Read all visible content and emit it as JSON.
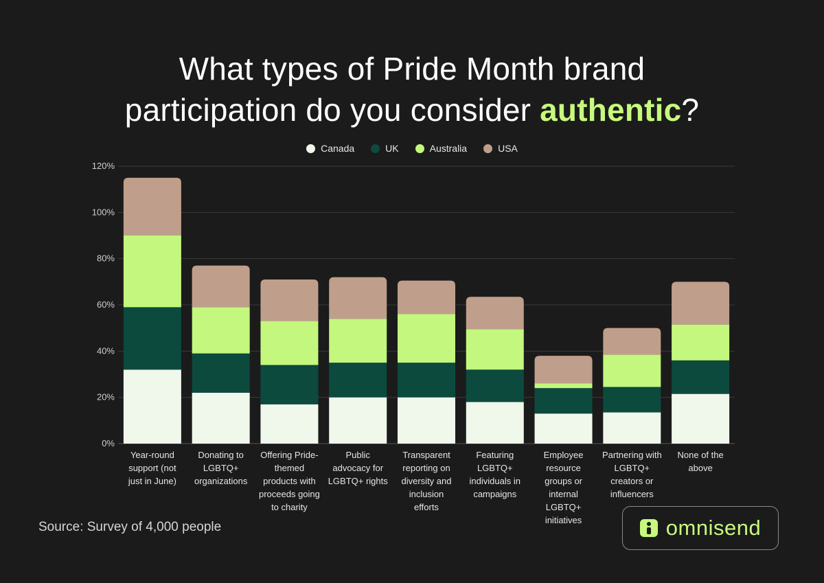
{
  "title": {
    "part1": "What types of Pride Month brand",
    "part2": "participation do you consider ",
    "highlight": "authentic",
    "part3": "?"
  },
  "legend": [
    {
      "label": "Canada",
      "color": "#f0f8ec"
    },
    {
      "label": "UK",
      "color": "#0c4a3e"
    },
    {
      "label": "Australia",
      "color": "#c3f77e"
    },
    {
      "label": "USA",
      "color": "#bf9f8b"
    }
  ],
  "source": "Source: Survey of 4,000 people",
  "logo": {
    "text": "omnisend",
    "icon": "omnisend-icon"
  },
  "chart_data": {
    "type": "bar",
    "stacked": true,
    "ylim": [
      0,
      120
    ],
    "yticks": [
      0,
      20,
      40,
      60,
      80,
      100,
      120
    ],
    "ytick_suffix": "%",
    "categories": [
      [
        "Year-round",
        "support (not",
        "just in June)"
      ],
      [
        "Donating to",
        "LGBTQ+",
        "organizations"
      ],
      [
        "Offering Pride-",
        "themed",
        "products with",
        "proceeds going",
        "to charity"
      ],
      [
        "Public",
        "advocacy for",
        "LGBTQ+ rights"
      ],
      [
        "Transparent",
        "reporting on",
        "diversity and",
        "inclusion",
        "efforts"
      ],
      [
        "Featuring",
        "LGBTQ+",
        "individuals in",
        "campaigns"
      ],
      [
        "Employee",
        "resource",
        "groups or",
        "internal",
        "LGBTQ+",
        "initiatives"
      ],
      [
        "Partnering with",
        "LGBTQ+",
        "creators or",
        "influencers"
      ],
      [
        "None of the",
        "above"
      ]
    ],
    "series": [
      {
        "name": "Canada",
        "color": "#f0f8ec",
        "values": [
          32,
          22,
          17,
          20,
          20,
          18,
          13,
          13.5,
          21.5
        ]
      },
      {
        "name": "UK",
        "color": "#0c4a3e",
        "values": [
          27,
          17,
          17,
          15,
          15,
          14,
          11,
          11,
          14.5
        ]
      },
      {
        "name": "Australia",
        "color": "#c3f77e",
        "values": [
          31,
          20,
          19,
          19,
          21,
          17.5,
          2,
          14,
          15.5
        ]
      },
      {
        "name": "USA",
        "color": "#bf9f8b",
        "values": [
          25,
          18,
          18,
          18,
          14.5,
          14,
          12,
          11.5,
          18.5
        ]
      }
    ],
    "grid": true,
    "legend_position": "top-center"
  }
}
